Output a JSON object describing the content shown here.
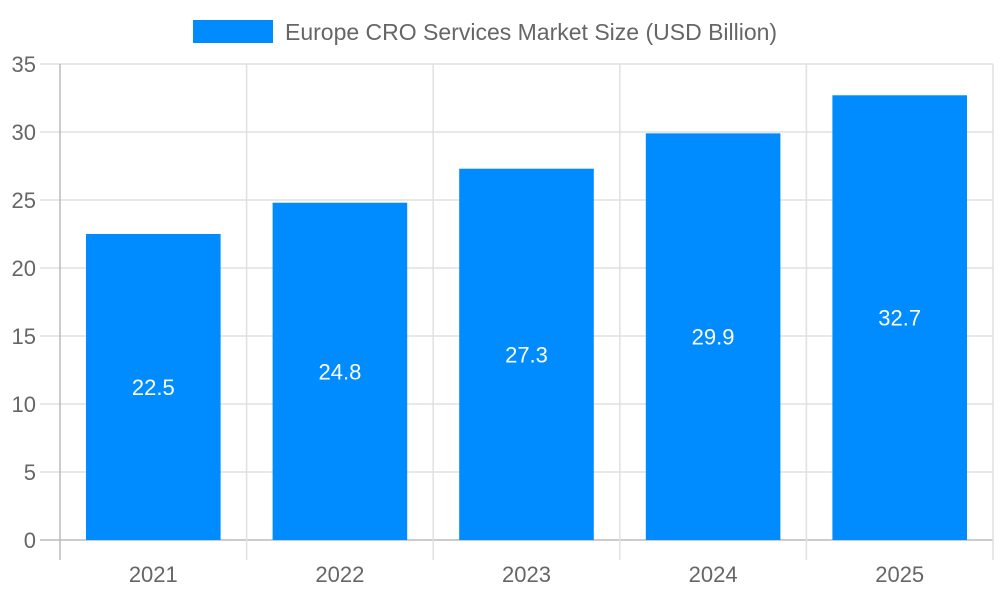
{
  "chart_data": {
    "type": "bar",
    "categories": [
      "2021",
      "2022",
      "2023",
      "2024",
      "2025"
    ],
    "series": [
      {
        "name": "Europe CRO Services Market Size (USD Billion)",
        "values": [
          22.5,
          24.8,
          27.3,
          29.9,
          32.7
        ],
        "color": "#008cff"
      }
    ],
    "data_labels": [
      "22.5",
      "24.8",
      "27.3",
      "29.9",
      "32.7"
    ],
    "ylim": [
      0,
      35
    ],
    "yticks": [
      "0",
      "5",
      "10",
      "15",
      "20",
      "25",
      "30",
      "35"
    ],
    "grid": true,
    "legend": "top"
  }
}
